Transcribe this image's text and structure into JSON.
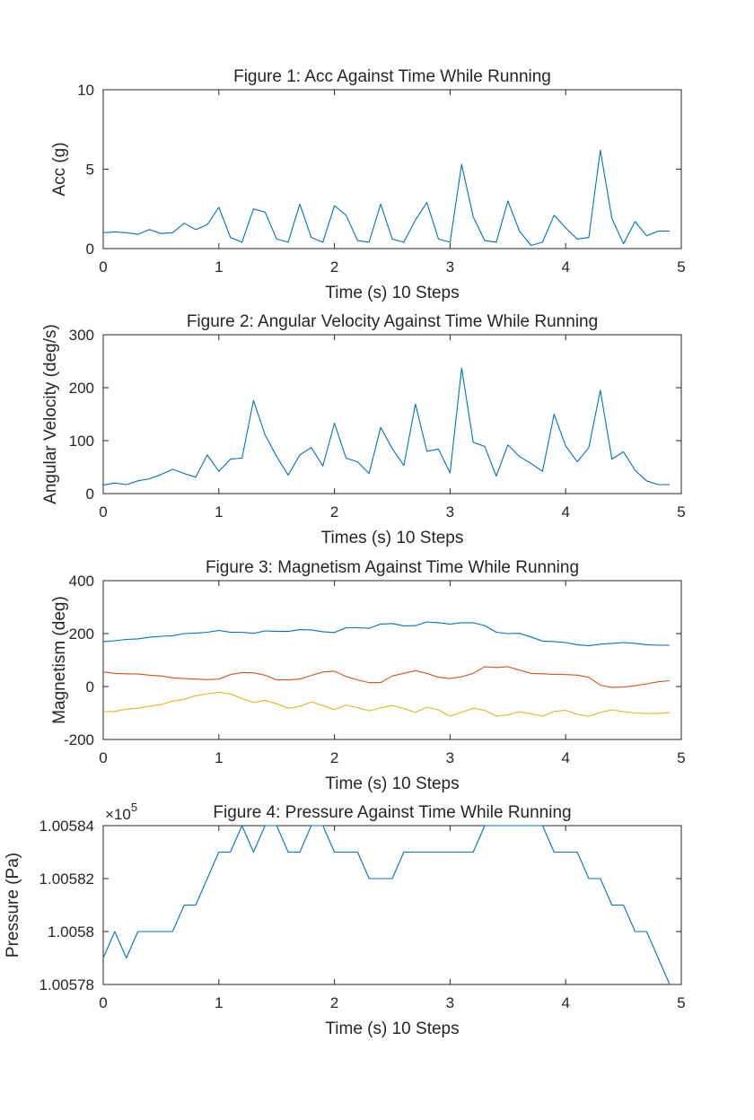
{
  "chart_data": [
    {
      "type": "line",
      "title": "Figure 1: Acc Against Time While Running",
      "xlabel": "Time (s) 10 Steps",
      "ylabel": "Acc (g)",
      "xlim": [
        0,
        5
      ],
      "ylim": [
        0,
        10
      ],
      "xticks": [
        "0",
        "1",
        "2",
        "3",
        "4",
        "5"
      ],
      "yticks": [
        "0",
        "5",
        "10"
      ],
      "ytick_values": [
        0,
        5,
        10
      ],
      "grid": false,
      "x": [
        0,
        0.1,
        0.2,
        0.3,
        0.4,
        0.5,
        0.6,
        0.7,
        0.8,
        0.9,
        1.0,
        1.1,
        1.2,
        1.3,
        1.4,
        1.5,
        1.6,
        1.7,
        1.8,
        1.9,
        2.0,
        2.1,
        2.2,
        2.3,
        2.4,
        2.5,
        2.6,
        2.7,
        2.8,
        2.9,
        3.0,
        3.1,
        3.2,
        3.3,
        3.4,
        3.5,
        3.6,
        3.7,
        3.8,
        3.9,
        4.0,
        4.1,
        4.2,
        4.3,
        4.4,
        4.5,
        4.6,
        4.7,
        4.8,
        4.9
      ],
      "series": [
        {
          "color": "#0072BD",
          "values": [
            1.0,
            1.05,
            1.0,
            0.9,
            1.2,
            0.95,
            1.0,
            1.6,
            1.2,
            1.5,
            2.6,
            0.7,
            0.4,
            2.5,
            2.3,
            0.6,
            0.4,
            2.8,
            0.7,
            0.4,
            2.7,
            2.1,
            0.5,
            0.4,
            2.8,
            0.6,
            0.4,
            1.8,
            2.9,
            0.6,
            0.4,
            5.3,
            2.0,
            0.5,
            0.4,
            3.0,
            1.1,
            0.2,
            0.4,
            2.1,
            1.3,
            0.6,
            0.7,
            6.2,
            1.9,
            0.3,
            1.7,
            0.8,
            1.1,
            1.1
          ]
        }
      ]
    },
    {
      "type": "line",
      "title": "Figure 2: Angular Velocity Against Time While Running",
      "xlabel": "Times (s) 10 Steps",
      "ylabel": "Angular Velocity (deg/s)",
      "xlim": [
        0,
        5
      ],
      "ylim": [
        0,
        300
      ],
      "xticks": [
        "0",
        "1",
        "2",
        "3",
        "4",
        "5"
      ],
      "yticks": [
        "0",
        "100",
        "200",
        "300"
      ],
      "ytick_values": [
        0,
        100,
        200,
        300
      ],
      "grid": false,
      "x": [
        0,
        0.1,
        0.2,
        0.3,
        0.4,
        0.5,
        0.6,
        0.7,
        0.8,
        0.9,
        1.0,
        1.1,
        1.2,
        1.3,
        1.4,
        1.5,
        1.6,
        1.7,
        1.8,
        1.9,
        2.0,
        2.1,
        2.2,
        2.3,
        2.4,
        2.5,
        2.6,
        2.7,
        2.8,
        2.9,
        3.0,
        3.1,
        3.2,
        3.3,
        3.4,
        3.5,
        3.6,
        3.7,
        3.8,
        3.9,
        4.0,
        4.1,
        4.2,
        4.3,
        4.4,
        4.5,
        4.6,
        4.7,
        4.8,
        4.9
      ],
      "series": [
        {
          "color": "#0072BD",
          "values": [
            16,
            20,
            17,
            24,
            28,
            36,
            46,
            38,
            31,
            73,
            42,
            65,
            67,
            176,
            111,
            70,
            35,
            73,
            87,
            52,
            133,
            67,
            60,
            38,
            125,
            85,
            53,
            169,
            80,
            84,
            39,
            237,
            97,
            89,
            33,
            92,
            70,
            57,
            42,
            150,
            90,
            60,
            87,
            195,
            65,
            79,
            44,
            24,
            17,
            17
          ]
        }
      ]
    },
    {
      "type": "line",
      "title": "Figure 3: Magnetism Against Time While Running",
      "xlabel": "Time (s) 10 Steps",
      "ylabel": "Magnetism (deg)",
      "xlim": [
        0,
        5
      ],
      "ylim": [
        -200,
        400
      ],
      "xticks": [
        "0",
        "1",
        "2",
        "3",
        "4",
        "5"
      ],
      "yticks": [
        "-200",
        "0",
        "200",
        "400"
      ],
      "ytick_values": [
        -200,
        0,
        200,
        400
      ],
      "grid": false,
      "x": [
        0,
        0.1,
        0.2,
        0.3,
        0.4,
        0.5,
        0.6,
        0.7,
        0.8,
        0.9,
        1.0,
        1.1,
        1.2,
        1.3,
        1.4,
        1.5,
        1.6,
        1.7,
        1.8,
        1.9,
        2.0,
        2.1,
        2.2,
        2.3,
        2.4,
        2.5,
        2.6,
        2.7,
        2.8,
        2.9,
        3.0,
        3.1,
        3.2,
        3.3,
        3.4,
        3.5,
        3.6,
        3.7,
        3.8,
        3.9,
        4.0,
        4.1,
        4.2,
        4.3,
        4.4,
        4.5,
        4.6,
        4.7,
        4.8,
        4.9
      ],
      "series": [
        {
          "color": "#0072BD",
          "values": [
            170,
            173,
            178,
            180,
            186,
            190,
            192,
            200,
            202,
            205,
            212,
            205,
            205,
            201,
            210,
            208,
            208,
            215,
            214,
            207,
            204,
            222,
            222,
            220,
            236,
            238,
            229,
            230,
            244,
            241,
            236,
            241,
            241,
            230,
            205,
            200,
            201,
            187,
            172,
            170,
            166,
            158,
            154,
            160,
            163,
            166,
            163,
            158,
            156,
            156
          ]
        },
        {
          "color": "#D95319",
          "values": [
            55,
            50,
            48,
            47,
            43,
            40,
            33,
            30,
            28,
            26,
            28,
            45,
            53,
            52,
            43,
            25,
            25,
            28,
            42,
            55,
            58,
            38,
            25,
            15,
            15,
            40,
            50,
            60,
            50,
            35,
            30,
            37,
            50,
            75,
            72,
            75,
            62,
            50,
            48,
            46,
            45,
            43,
            35,
            5,
            -3,
            -2,
            3,
            10,
            18,
            22
          ]
        },
        {
          "color": "#EDB120",
          "values": [
            -95,
            -94,
            -85,
            -82,
            -75,
            -68,
            -55,
            -48,
            -35,
            -27,
            -22,
            -28,
            -45,
            -60,
            -52,
            -65,
            -82,
            -75,
            -58,
            -72,
            -87,
            -70,
            -80,
            -92,
            -80,
            -72,
            -83,
            -98,
            -78,
            -88,
            -112,
            -97,
            -82,
            -90,
            -112,
            -107,
            -95,
            -103,
            -112,
            -94,
            -90,
            -105,
            -112,
            -98,
            -88,
            -95,
            -100,
            -102,
            -102,
            -98
          ]
        }
      ]
    },
    {
      "type": "line",
      "title": "Figure 4: Pressure Against Time While Running",
      "xlabel": "Time (s) 10 Steps",
      "ylabel": "Pressure (Pa)",
      "xlim": [
        0,
        5
      ],
      "ylim": [
        1.00578,
        1.00584
      ],
      "yscale_label": "×10",
      "yscale_exponent": "5",
      "xticks": [
        "0",
        "1",
        "2",
        "3",
        "4",
        "5"
      ],
      "yticks": [
        "1.00578",
        "1.0058",
        "1.00582",
        "1.00584"
      ],
      "ytick_values": [
        1.00578,
        1.0058,
        1.00582,
        1.00584
      ],
      "grid": false,
      "x": [
        0,
        0.1,
        0.2,
        0.3,
        0.4,
        0.5,
        0.6,
        0.7,
        0.8,
        0.9,
        1.0,
        1.1,
        1.2,
        1.3,
        1.4,
        1.5,
        1.6,
        1.7,
        1.8,
        1.9,
        2.0,
        2.1,
        2.2,
        2.3,
        2.4,
        2.5,
        2.6,
        2.7,
        2.8,
        2.9,
        3.0,
        3.1,
        3.2,
        3.3,
        3.4,
        3.5,
        3.6,
        3.7,
        3.8,
        3.9,
        4.0,
        4.1,
        4.2,
        4.3,
        4.4,
        4.5,
        4.6,
        4.7,
        4.8,
        4.9
      ],
      "series": [
        {
          "color": "#0072BD",
          "values": [
            1.00579,
            1.0058,
            1.00579,
            1.0058,
            1.0058,
            1.0058,
            1.0058,
            1.00581,
            1.00581,
            1.00582,
            1.00583,
            1.00583,
            1.00584,
            1.00583,
            1.00584,
            1.00584,
            1.00583,
            1.00583,
            1.00584,
            1.00584,
            1.00583,
            1.00583,
            1.00583,
            1.00582,
            1.00582,
            1.00582,
            1.00583,
            1.00583,
            1.00583,
            1.00583,
            1.00583,
            1.00583,
            1.00583,
            1.00584,
            1.00584,
            1.00584,
            1.00584,
            1.00584,
            1.00584,
            1.00583,
            1.00583,
            1.00583,
            1.00582,
            1.00582,
            1.00581,
            1.00581,
            1.0058,
            1.0058,
            1.00579,
            1.00578
          ]
        }
      ]
    }
  ]
}
